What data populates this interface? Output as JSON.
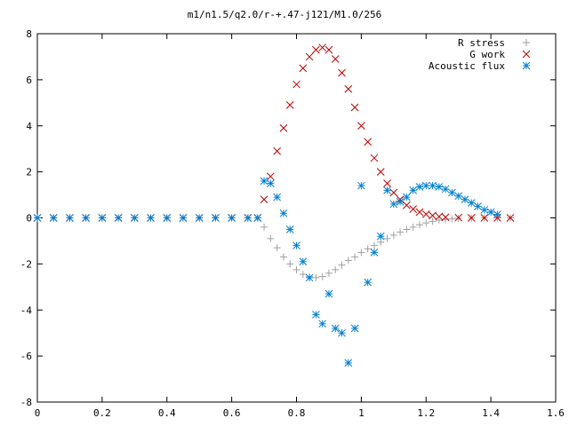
{
  "chart_data": {
    "type": "scatter",
    "title": "m1/n1.5/q2.0/r-+.47-j121/M1.0/256",
    "xlabel": "",
    "ylabel": "",
    "xlim": [
      0,
      1.6
    ],
    "ylim": [
      -8,
      8
    ],
    "x_ticks": [
      "0",
      "0.2",
      "0.4",
      "0.6",
      "0.8",
      "1",
      "1.2",
      "1.4",
      "1.6"
    ],
    "y_ticks": [
      "-8",
      "-6",
      "-4",
      "-2",
      "0",
      "2",
      "4",
      "6",
      "8"
    ],
    "grid": false,
    "legend_position": "top-right",
    "series": [
      {
        "name": "R stress",
        "marker": "plus",
        "color": "#a0a0a0",
        "points": [
          [
            0.0,
            0.0
          ],
          [
            0.05,
            0.0
          ],
          [
            0.1,
            0.0
          ],
          [
            0.15,
            0.0
          ],
          [
            0.2,
            0.0
          ],
          [
            0.25,
            0.0
          ],
          [
            0.3,
            0.0
          ],
          [
            0.35,
            0.0
          ],
          [
            0.4,
            0.0
          ],
          [
            0.45,
            0.0
          ],
          [
            0.5,
            0.0
          ],
          [
            0.55,
            0.0
          ],
          [
            0.6,
            0.0
          ],
          [
            0.65,
            0.0
          ],
          [
            0.68,
            0.0
          ],
          [
            0.7,
            -0.4
          ],
          [
            0.72,
            -0.9
          ],
          [
            0.74,
            -1.3
          ],
          [
            0.76,
            -1.7
          ],
          [
            0.78,
            -2.0
          ],
          [
            0.8,
            -2.25
          ],
          [
            0.82,
            -2.45
          ],
          [
            0.84,
            -2.55
          ],
          [
            0.86,
            -2.6
          ],
          [
            0.88,
            -2.55
          ],
          [
            0.9,
            -2.4
          ],
          [
            0.92,
            -2.25
          ],
          [
            0.94,
            -2.05
          ],
          [
            0.96,
            -1.85
          ],
          [
            0.98,
            -1.7
          ],
          [
            1.0,
            -1.5
          ],
          [
            1.02,
            -1.35
          ],
          [
            1.04,
            -1.2
          ],
          [
            1.06,
            -1.05
          ],
          [
            1.08,
            -0.9
          ],
          [
            1.1,
            -0.75
          ],
          [
            1.12,
            -0.62
          ],
          [
            1.14,
            -0.5
          ],
          [
            1.16,
            -0.4
          ],
          [
            1.18,
            -0.3
          ],
          [
            1.2,
            -0.22
          ],
          [
            1.22,
            -0.15
          ],
          [
            1.24,
            -0.1
          ],
          [
            1.26,
            -0.07
          ],
          [
            1.28,
            -0.04
          ],
          [
            1.3,
            -0.02
          ],
          [
            1.34,
            -0.01
          ],
          [
            1.38,
            0.0
          ],
          [
            1.42,
            0.0
          ],
          [
            1.46,
            0.0
          ]
        ]
      },
      {
        "name": "G work",
        "marker": "cross",
        "color": "#c00000",
        "points": [
          [
            0.0,
            0.0
          ],
          [
            0.05,
            0.0
          ],
          [
            0.1,
            0.0
          ],
          [
            0.15,
            0.0
          ],
          [
            0.2,
            0.0
          ],
          [
            0.25,
            0.0
          ],
          [
            0.3,
            0.0
          ],
          [
            0.35,
            0.0
          ],
          [
            0.4,
            0.0
          ],
          [
            0.45,
            0.0
          ],
          [
            0.5,
            0.0
          ],
          [
            0.55,
            0.0
          ],
          [
            0.6,
            0.0
          ],
          [
            0.65,
            0.0
          ],
          [
            0.68,
            0.0
          ],
          [
            0.7,
            0.8
          ],
          [
            0.72,
            1.8
          ],
          [
            0.74,
            2.9
          ],
          [
            0.76,
            3.9
          ],
          [
            0.78,
            4.9
          ],
          [
            0.8,
            5.8
          ],
          [
            0.82,
            6.5
          ],
          [
            0.84,
            7.0
          ],
          [
            0.86,
            7.3
          ],
          [
            0.88,
            7.4
          ],
          [
            0.9,
            7.3
          ],
          [
            0.92,
            6.9
          ],
          [
            0.94,
            6.3
          ],
          [
            0.96,
            5.6
          ],
          [
            0.98,
            4.8
          ],
          [
            1.0,
            4.0
          ],
          [
            1.02,
            3.3
          ],
          [
            1.04,
            2.6
          ],
          [
            1.06,
            2.0
          ],
          [
            1.08,
            1.5
          ],
          [
            1.1,
            1.1
          ],
          [
            1.12,
            0.8
          ],
          [
            1.14,
            0.55
          ],
          [
            1.16,
            0.38
          ],
          [
            1.18,
            0.25
          ],
          [
            1.2,
            0.16
          ],
          [
            1.22,
            0.1
          ],
          [
            1.24,
            0.06
          ],
          [
            1.26,
            0.03
          ],
          [
            1.3,
            0.01
          ],
          [
            1.34,
            0.0
          ],
          [
            1.38,
            0.0
          ],
          [
            1.42,
            0.0
          ],
          [
            1.46,
            0.0
          ]
        ]
      },
      {
        "name": "Acoustic flux",
        "marker": "star",
        "color": "#0080d0",
        "points": [
          [
            0.0,
            0.0
          ],
          [
            0.05,
            0.0
          ],
          [
            0.1,
            0.0
          ],
          [
            0.15,
            0.0
          ],
          [
            0.2,
            0.0
          ],
          [
            0.25,
            0.0
          ],
          [
            0.3,
            0.0
          ],
          [
            0.35,
            0.0
          ],
          [
            0.4,
            0.0
          ],
          [
            0.45,
            0.0
          ],
          [
            0.5,
            0.0
          ],
          [
            0.55,
            0.0
          ],
          [
            0.6,
            0.0
          ],
          [
            0.65,
            0.0
          ],
          [
            0.68,
            0.0
          ],
          [
            0.7,
            1.6
          ],
          [
            0.72,
            1.5
          ],
          [
            0.74,
            0.9
          ],
          [
            0.76,
            0.2
          ],
          [
            0.78,
            -0.5
          ],
          [
            0.8,
            -1.2
          ],
          [
            0.82,
            -1.9
          ],
          [
            0.84,
            -2.6
          ],
          [
            0.86,
            -4.2
          ],
          [
            0.88,
            -4.6
          ],
          [
            0.9,
            -3.3
          ],
          [
            0.92,
            -4.8
          ],
          [
            0.94,
            -5.0
          ],
          [
            0.96,
            -6.3
          ],
          [
            0.98,
            -4.8
          ],
          [
            1.0,
            1.4
          ],
          [
            1.02,
            -2.8
          ],
          [
            1.04,
            -1.5
          ],
          [
            1.06,
            -0.8
          ],
          [
            1.08,
            1.2
          ],
          [
            1.1,
            0.6
          ],
          [
            1.12,
            0.7
          ],
          [
            1.14,
            0.9
          ],
          [
            1.16,
            1.2
          ],
          [
            1.18,
            1.35
          ],
          [
            1.2,
            1.4
          ],
          [
            1.22,
            1.4
          ],
          [
            1.24,
            1.35
          ],
          [
            1.26,
            1.25
          ],
          [
            1.28,
            1.1
          ],
          [
            1.3,
            0.95
          ],
          [
            1.32,
            0.8
          ],
          [
            1.34,
            0.65
          ],
          [
            1.36,
            0.5
          ],
          [
            1.38,
            0.35
          ],
          [
            1.4,
            0.25
          ],
          [
            1.42,
            0.15
          ]
        ]
      }
    ]
  }
}
